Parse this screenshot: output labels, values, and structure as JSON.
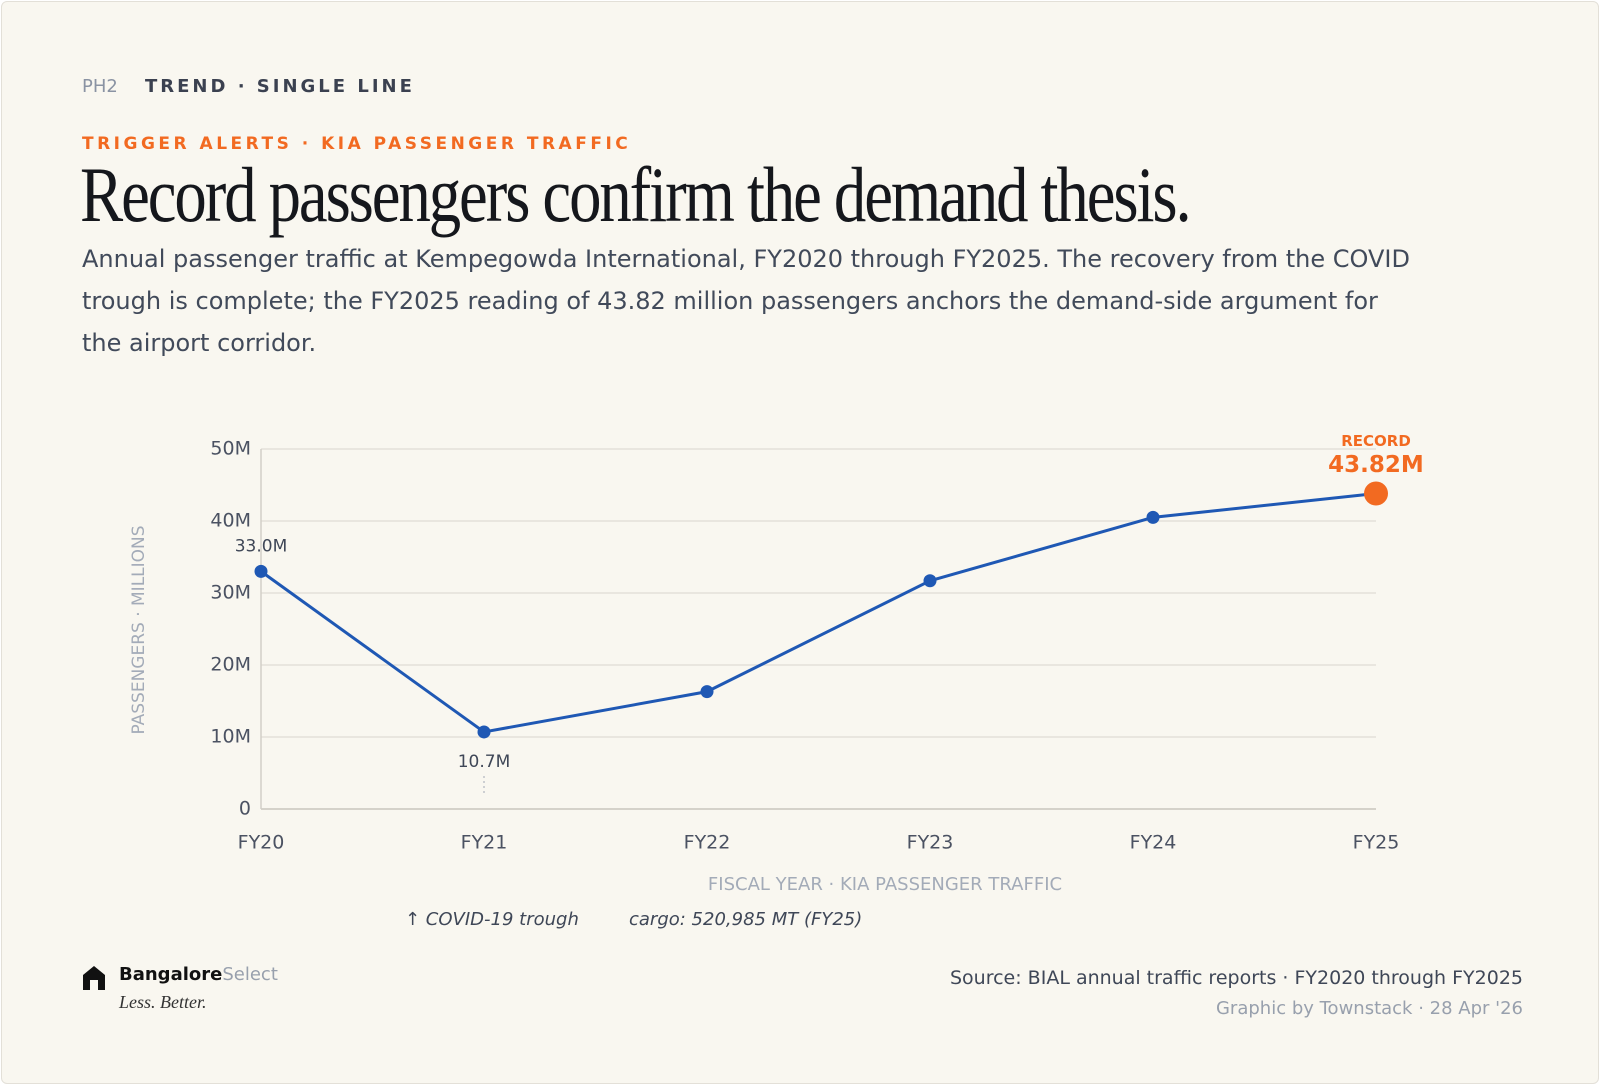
{
  "header": {
    "code": "PH2",
    "kind": "TREND · SINGLE LINE",
    "eyebrow": "TRIGGER ALERTS · KIA PASSENGER TRAFFIC",
    "title": "Record passengers confirm the demand thesis.",
    "subtitle": "Annual passenger traffic at Kempegowda International, FY2020 through FY2025. The recovery from the COVID trough is complete; the FY2025 reading of 43.82 million passengers anchors the demand-side argument for the airport corridor."
  },
  "chart_data": {
    "type": "line",
    "y_label": "PASSENGERS · MILLIONS",
    "x_label": "FISCAL YEAR · KIA PASSENGER TRAFFIC",
    "categories": [
      "FY20",
      "FY21",
      "FY22",
      "FY23",
      "FY24",
      "FY25"
    ],
    "series": [
      {
        "name": "KIA passengers",
        "color": "#1f58b4",
        "values": [
          33.0,
          10.7,
          16.3,
          31.7,
          40.5,
          43.82
        ],
        "value_labels": [
          "33.0M",
          "10.7M",
          null,
          null,
          null,
          "43.82M"
        ]
      }
    ],
    "ylim": [
      0,
      50
    ],
    "yticks": [
      0,
      {
        "value": 10,
        "label": "10M"
      },
      {
        "value": 20,
        "label": "20M"
      },
      {
        "value": 30,
        "label": "30M"
      },
      {
        "value": 40,
        "label": "40M"
      },
      {
        "value": 50,
        "label": "50M"
      }
    ],
    "grid": true,
    "annotations": [
      {
        "text": "RECORD",
        "category": "FY25",
        "color": "#f26a21"
      }
    ],
    "notes": [
      "↑ COVID-19 trough",
      "cargo: 520,985 MT (FY25)"
    ]
  },
  "footer": {
    "brand": "Bangalore",
    "brand_suffix": "Select",
    "tagline": "Less. Better.",
    "source": "Source: BIAL annual traffic reports · FY2020 through FY2025",
    "credit": "Graphic by Townstack · 28 Apr '26"
  }
}
